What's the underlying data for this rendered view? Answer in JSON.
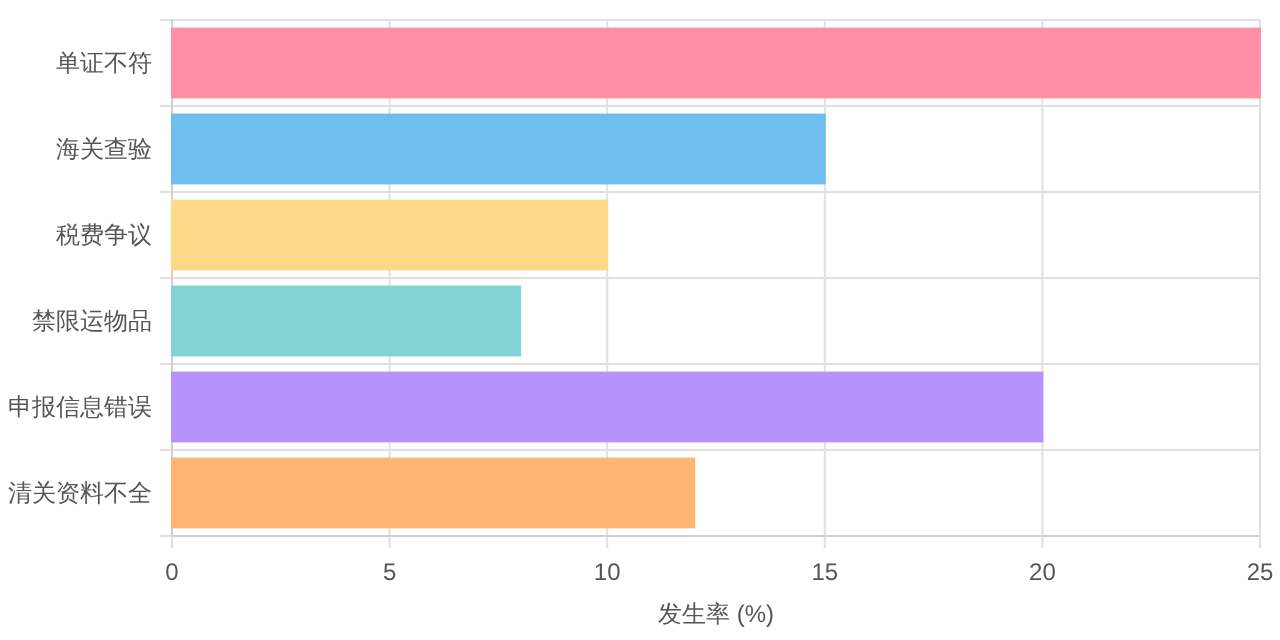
{
  "chart_data": {
    "type": "bar",
    "orientation": "horizontal",
    "xlabel": "发生率 (%)",
    "categories": [
      "单证不符",
      "海关查验",
      "税费争议",
      "禁限运物品",
      "申报信息错误",
      "清关资料不全"
    ],
    "values": [
      25,
      15,
      10,
      8,
      20,
      12
    ],
    "colors": [
      "#ff8fa6",
      "#6fbcee",
      "#ffd988",
      "#82d4d4",
      "#b692fe",
      "#ffb672"
    ],
    "xlim": [
      0,
      25
    ],
    "xticks": [
      0,
      5,
      10,
      15,
      20,
      25
    ],
    "grid": true
  }
}
